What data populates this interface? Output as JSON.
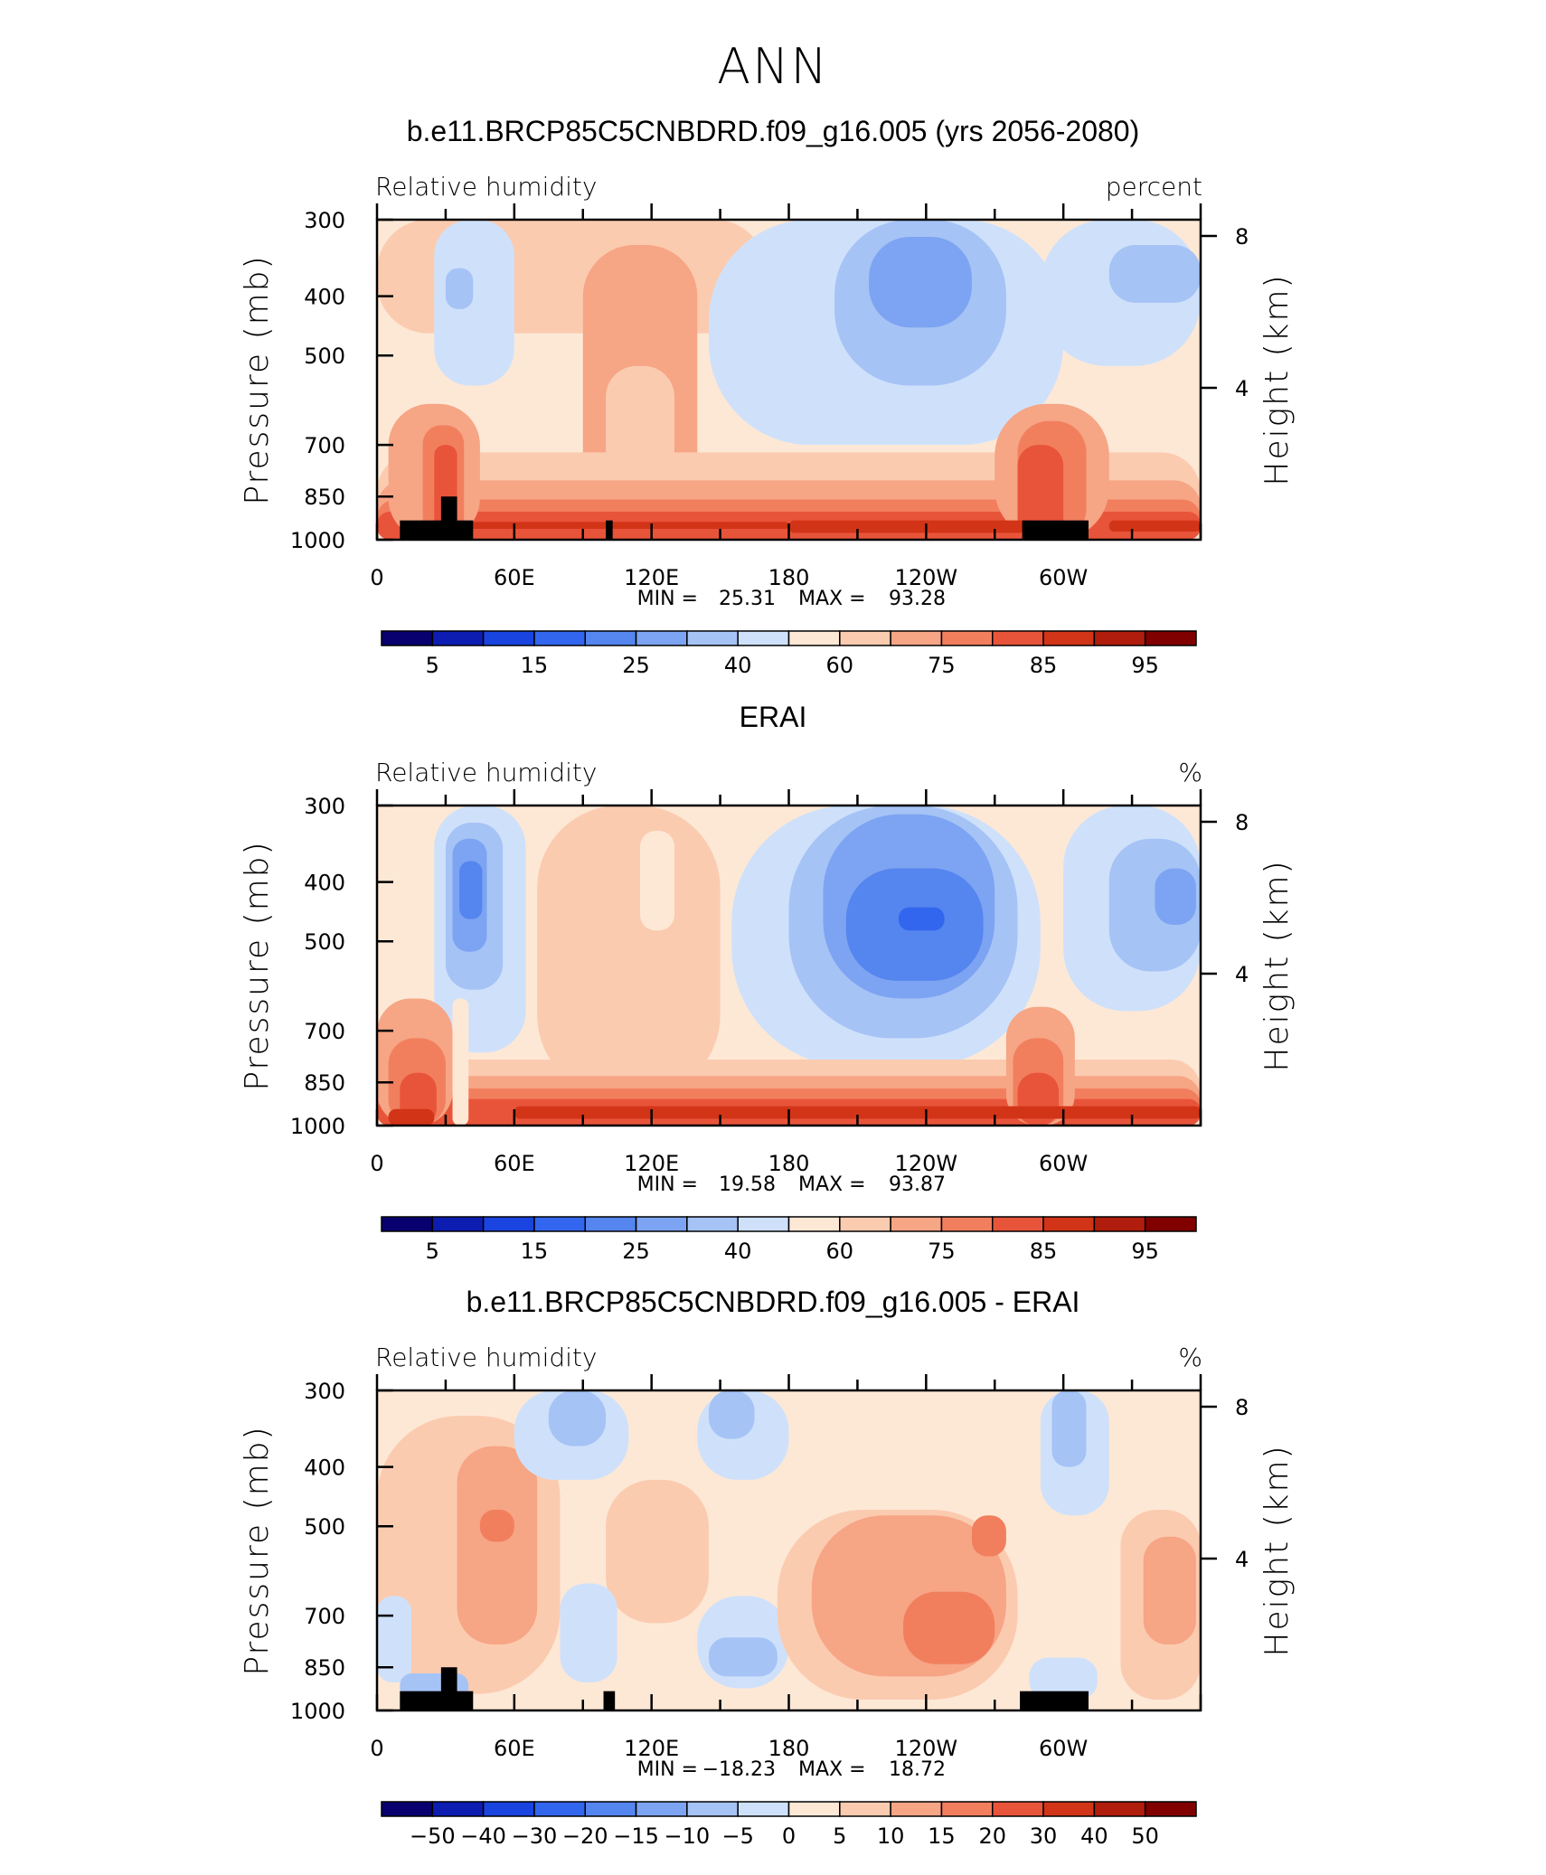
{
  "page_title": "ANN",
  "colors": {
    "rh_scale": [
      "#08006e",
      "#0d1db2",
      "#1a44e0",
      "#3366ee",
      "#5585ee",
      "#7da4f2",
      "#a6c3f6",
      "#cfe1fa",
      "#fde8d6",
      "#fbcbb0",
      "#f6a585",
      "#f17f5e",
      "#e8543a",
      "#d23418",
      "#b01d0c",
      "#800000"
    ],
    "diff_scale": [
      "#08006e",
      "#0d1db2",
      "#1a44e0",
      "#3366ee",
      "#5585ee",
      "#7da4f2",
      "#a6c3f6",
      "#cfe1fa",
      "#fde8d6",
      "#fbcbb0",
      "#f6a585",
      "#f17f5e",
      "#e8543a",
      "#d23418",
      "#b01d0c",
      "#800000"
    ],
    "terrain": "#000000"
  },
  "chart_data": [
    {
      "type": "heatmap",
      "title": "b.e11.BRCP85C5CNBDRD.f09_g16.005 (yrs 2056-2080)",
      "variable_label": "Relative humidity",
      "units_label": "percent",
      "ylabel": "Pressure (mb)",
      "y2label": "Height (km)",
      "yticks": [
        "300",
        "400",
        "500",
        "700",
        "850",
        "1000"
      ],
      "y2ticks": [
        "8",
        "4"
      ],
      "xticks": [
        "0",
        "60E",
        "120E",
        "180",
        "120W",
        "60W"
      ],
      "xlim": [
        0,
        360
      ],
      "ylim": [
        1000,
        300
      ],
      "min_label": "MIN =",
      "min_value": "25.31",
      "max_label": "MAX =",
      "max_value": "93.28",
      "colorbar_labels": [
        "5",
        "15",
        "25",
        "40",
        "60",
        "75",
        "85",
        "95"
      ],
      "cells": [
        {
          "x": [
            0,
            360
          ],
          "p": [
            300,
            1000
          ],
          "level": 8
        },
        {
          "x": [
            0,
            170
          ],
          "p": [
            300,
            460
          ],
          "level": 9
        },
        {
          "x": [
            25,
            60
          ],
          "p": [
            300,
            560
          ],
          "level": 7
        },
        {
          "x": [
            30,
            42
          ],
          "p": [
            360,
            420
          ],
          "level": 6
        },
        {
          "x": [
            90,
            140
          ],
          "p": [
            330,
            900
          ],
          "level": 10
        },
        {
          "x": [
            100,
            130
          ],
          "p": [
            520,
            860
          ],
          "level": 9
        },
        {
          "x": [
            145,
            300
          ],
          "p": [
            300,
            700
          ],
          "level": 7
        },
        {
          "x": [
            200,
            275
          ],
          "p": [
            300,
            560
          ],
          "level": 6
        },
        {
          "x": [
            215,
            260
          ],
          "p": [
            320,
            450
          ],
          "level": 5
        },
        {
          "x": [
            290,
            360
          ],
          "p": [
            300,
            520
          ],
          "level": 7
        },
        {
          "x": [
            320,
            360
          ],
          "p": [
            330,
            410
          ],
          "level": 6
        },
        {
          "x": [
            0,
            360
          ],
          "p": [
            720,
            1000
          ],
          "level": 9
        },
        {
          "x": [
            0,
            360
          ],
          "p": [
            800,
            1000
          ],
          "level": 10
        },
        {
          "x": [
            0,
            360
          ],
          "p": [
            860,
            1000
          ],
          "level": 11
        },
        {
          "x": [
            0,
            360
          ],
          "p": [
            900,
            1000
          ],
          "level": 12
        },
        {
          "x": [
            5,
            45
          ],
          "p": [
            600,
            1000
          ],
          "level": 10
        },
        {
          "x": [
            20,
            38
          ],
          "p": [
            650,
            1000
          ],
          "level": 11
        },
        {
          "x": [
            25,
            35
          ],
          "p": [
            700,
            1000
          ],
          "level": 12
        },
        {
          "x": [
            270,
            320
          ],
          "p": [
            600,
            1000
          ],
          "level": 10
        },
        {
          "x": [
            280,
            310
          ],
          "p": [
            640,
            1000
          ],
          "level": 11
        },
        {
          "x": [
            280,
            300
          ],
          "p": [
            700,
            1000
          ],
          "level": 12
        },
        {
          "x": [
            180,
            290
          ],
          "p": [
            930,
            975
          ],
          "level": 13
        },
        {
          "x": [
            320,
            360
          ],
          "p": [
            930,
            970
          ],
          "level": 13
        },
        {
          "x": [
            40,
            180
          ],
          "p": [
            935,
            960
          ],
          "level": 13
        }
      ],
      "terrain": [
        {
          "x": [
            10,
            42
          ],
          "p": [
            930,
            1000
          ]
        },
        {
          "x": [
            28,
            35
          ],
          "p": [
            850,
            1000
          ]
        },
        {
          "x": [
            100,
            103
          ],
          "p": [
            930,
            1000
          ]
        },
        {
          "x": [
            282,
            311
          ],
          "p": [
            930,
            1000
          ]
        }
      ]
    },
    {
      "type": "heatmap",
      "title": "ERAI",
      "variable_label": "Relative humidity",
      "units_label": "%",
      "ylabel": "Pressure (mb)",
      "y2label": "Height (km)",
      "yticks": [
        "300",
        "400",
        "500",
        "700",
        "850",
        "1000"
      ],
      "y2ticks": [
        "8",
        "4"
      ],
      "xticks": [
        "0",
        "60E",
        "120E",
        "180",
        "120W",
        "60W"
      ],
      "xlim": [
        0,
        360
      ],
      "ylim": [
        1000,
        300
      ],
      "min_label": "MIN =",
      "min_value": "19.58",
      "max_label": "MAX =",
      "max_value": "93.87",
      "colorbar_labels": [
        "5",
        "15",
        "25",
        "40",
        "60",
        "75",
        "85",
        "95"
      ],
      "cells": [
        {
          "x": [
            0,
            360
          ],
          "p": [
            300,
            1000
          ],
          "level": 8
        },
        {
          "x": [
            70,
            150
          ],
          "p": [
            300,
            900
          ],
          "level": 9
        },
        {
          "x": [
            115,
            130
          ],
          "p": [
            330,
            480
          ],
          "level": 8
        },
        {
          "x": [
            25,
            65
          ],
          "p": [
            300,
            760
          ],
          "level": 7
        },
        {
          "x": [
            30,
            55
          ],
          "p": [
            320,
            600
          ],
          "level": 6
        },
        {
          "x": [
            33,
            48
          ],
          "p": [
            340,
            520
          ],
          "level": 5
        },
        {
          "x": [
            36,
            46
          ],
          "p": [
            370,
            460
          ],
          "level": 4
        },
        {
          "x": [
            155,
            290
          ],
          "p": [
            300,
            800
          ],
          "level": 7
        },
        {
          "x": [
            180,
            280
          ],
          "p": [
            300,
            720
          ],
          "level": 6
        },
        {
          "x": [
            195,
            270
          ],
          "p": [
            310,
            620
          ],
          "level": 5
        },
        {
          "x": [
            205,
            265
          ],
          "p": [
            380,
            580
          ],
          "level": 4
        },
        {
          "x": [
            228,
            248
          ],
          "p": [
            440,
            480
          ],
          "level": 3
        },
        {
          "x": [
            300,
            360
          ],
          "p": [
            300,
            650
          ],
          "level": 7
        },
        {
          "x": [
            320,
            360
          ],
          "p": [
            340,
            560
          ],
          "level": 6
        },
        {
          "x": [
            340,
            358
          ],
          "p": [
            380,
            470
          ],
          "level": 5
        },
        {
          "x": [
            0,
            360
          ],
          "p": [
            780,
            1000
          ],
          "level": 9
        },
        {
          "x": [
            0,
            360
          ],
          "p": [
            830,
            1000
          ],
          "level": 10
        },
        {
          "x": [
            0,
            360
          ],
          "p": [
            870,
            1000
          ],
          "level": 11
        },
        {
          "x": [
            0,
            360
          ],
          "p": [
            905,
            1000
          ],
          "level": 12
        },
        {
          "x": [
            0,
            33
          ],
          "p": [
            620,
            1000
          ],
          "level": 10
        },
        {
          "x": [
            5,
            30
          ],
          "p": [
            720,
            1000
          ],
          "level": 11
        },
        {
          "x": [
            10,
            26
          ],
          "p": [
            820,
            1000
          ],
          "level": 12
        },
        {
          "x": [
            33,
            40
          ],
          "p": [
            620,
            1000
          ],
          "level": 8
        },
        {
          "x": [
            275,
            305
          ],
          "p": [
            640,
            1000
          ],
          "level": 10
        },
        {
          "x": [
            278,
            300
          ],
          "p": [
            720,
            1000
          ],
          "level": 11
        },
        {
          "x": [
            280,
            298
          ],
          "p": [
            820,
            1000
          ],
          "level": 12
        },
        {
          "x": [
            60,
            360
          ],
          "p": [
            930,
            975
          ],
          "level": 13
        },
        {
          "x": [
            5,
            25
          ],
          "p": [
            940,
            1000
          ],
          "level": 13
        }
      ],
      "terrain": []
    },
    {
      "type": "heatmap",
      "title": "b.e11.BRCP85C5CNBDRD.f09_g16.005 - ERAI",
      "variable_label": "Relative humidity",
      "units_label": "%",
      "ylabel": "Pressure (mb)",
      "y2label": "Height (km)",
      "yticks": [
        "300",
        "400",
        "500",
        "700",
        "850",
        "1000"
      ],
      "y2ticks": [
        "8",
        "4"
      ],
      "xticks": [
        "0",
        "60E",
        "120E",
        "180",
        "120W",
        "60W"
      ],
      "xlim": [
        0,
        360
      ],
      "ylim": [
        1000,
        300
      ],
      "min_label": "MIN =",
      "min_value": "−18.23",
      "max_label": "MAX =",
      "max_value": "18.72",
      "colorbar_labels": [
        "−50",
        "−40",
        "−30",
        "−20",
        "−15",
        "−10",
        "−5",
        "0",
        "5",
        "10",
        "15",
        "20",
        "30",
        "40",
        "50"
      ],
      "cells": [
        {
          "x": [
            0,
            360
          ],
          "p": [
            300,
            1000
          ],
          "level": 8
        },
        {
          "x": [
            0,
            80
          ],
          "p": [
            330,
            940
          ],
          "level": 9
        },
        {
          "x": [
            35,
            70
          ],
          "p": [
            370,
            780
          ],
          "level": 10
        },
        {
          "x": [
            45,
            60
          ],
          "p": [
            470,
            530
          ],
          "level": 11
        },
        {
          "x": [
            60,
            110
          ],
          "p": [
            300,
            420
          ],
          "level": 7
        },
        {
          "x": [
            75,
            100
          ],
          "p": [
            300,
            370
          ],
          "level": 6
        },
        {
          "x": [
            140,
            180
          ],
          "p": [
            300,
            420
          ],
          "level": 7
        },
        {
          "x": [
            145,
            165
          ],
          "p": [
            300,
            360
          ],
          "level": 6
        },
        {
          "x": [
            100,
            145
          ],
          "p": [
            420,
            720
          ],
          "level": 9
        },
        {
          "x": [
            0,
            15
          ],
          "p": [
            650,
            900
          ],
          "level": 7
        },
        {
          "x": [
            80,
            105
          ],
          "p": [
            620,
            900
          ],
          "level": 7
        },
        {
          "x": [
            140,
            180
          ],
          "p": [
            650,
            920
          ],
          "level": 7
        },
        {
          "x": [
            145,
            175
          ],
          "p": [
            760,
            880
          ],
          "level": 6
        },
        {
          "x": [
            175,
            280
          ],
          "p": [
            470,
            960
          ],
          "level": 9
        },
        {
          "x": [
            190,
            275
          ],
          "p": [
            480,
            880
          ],
          "level": 10
        },
        {
          "x": [
            230,
            270
          ],
          "p": [
            640,
            840
          ],
          "level": 11
        },
        {
          "x": [
            260,
            275
          ],
          "p": [
            480,
            560
          ],
          "level": 11
        },
        {
          "x": [
            290,
            320
          ],
          "p": [
            300,
            480
          ],
          "level": 7
        },
        {
          "x": [
            295,
            310
          ],
          "p": [
            300,
            400
          ],
          "level": 6
        },
        {
          "x": [
            285,
            315
          ],
          "p": [
            820,
            960
          ],
          "level": 7
        },
        {
          "x": [
            325,
            360
          ],
          "p": [
            470,
            960
          ],
          "level": 9
        },
        {
          "x": [
            335,
            358
          ],
          "p": [
            520,
            780
          ],
          "level": 10
        },
        {
          "x": [
            10,
            40
          ],
          "p": [
            870,
            960
          ],
          "level": 6
        }
      ],
      "terrain": [
        {
          "x": [
            10,
            42
          ],
          "p": [
            930,
            1000
          ]
        },
        {
          "x": [
            28,
            35
          ],
          "p": [
            850,
            1000
          ]
        },
        {
          "x": [
            99,
            104
          ],
          "p": [
            930,
            1000
          ]
        },
        {
          "x": [
            281,
            311
          ],
          "p": [
            930,
            1000
          ]
        }
      ]
    }
  ]
}
